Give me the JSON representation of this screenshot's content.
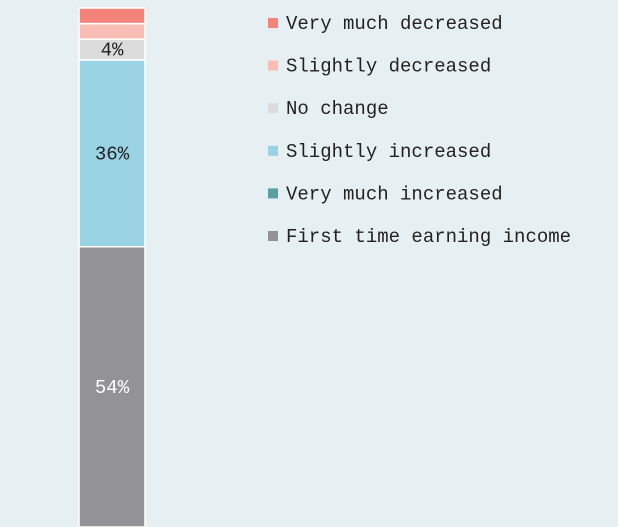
{
  "chart_data": {
    "type": "stacked_bar",
    "series": [
      {
        "name": "Very much decreased",
        "color": "#f4847a",
        "values": [
          3
        ]
      },
      {
        "name": "Slightly decreased",
        "color": "#f9bdb6",
        "values": [
          3
        ]
      },
      {
        "name": "No change",
        "color": "#dcdcdc",
        "values": [
          4
        ],
        "value_labels": [
          "4%"
        ]
      },
      {
        "name": "Slightly increased",
        "color": "#99d3e3",
        "values": [
          36
        ],
        "value_labels": [
          "36%"
        ]
      },
      {
        "name": "Very much increased",
        "color": "#5a9fa3",
        "values": [
          0
        ]
      },
      {
        "name": "First time earning income",
        "color": "#939397",
        "values": [
          54
        ],
        "value_labels": [
          "54%"
        ]
      }
    ]
  }
}
